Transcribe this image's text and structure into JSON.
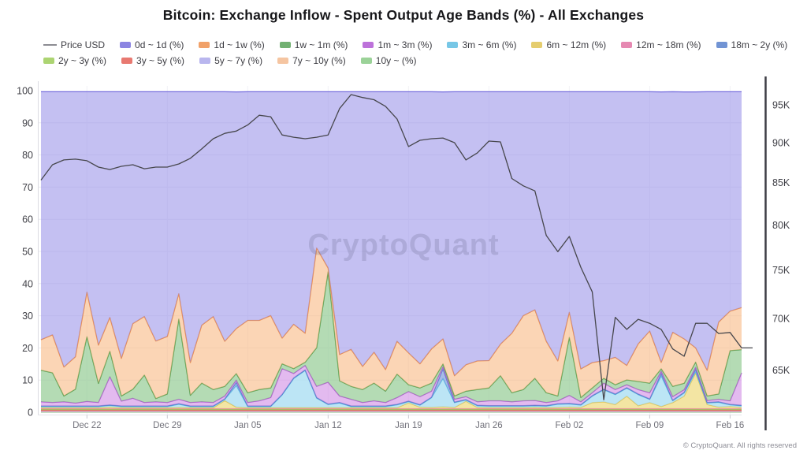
{
  "title": "Bitcoin: Exchange Inflow - Spent Output Age Bands (%) - All Exchanges",
  "watermark": "CryptoQuant",
  "footer": "© CryptoQuant. All rights reserved",
  "legend": {
    "rows": [
      [
        {
          "label": "Price USD",
          "color": "#8c8c92",
          "type": "line"
        },
        {
          "label": "0d ~ 1d (%)",
          "color": "#6f66db",
          "type": "box"
        },
        {
          "label": "1d ~ 1w (%)",
          "color": "#ed8a43",
          "type": "box"
        },
        {
          "label": "1w ~ 1m (%)",
          "color": "#4f9e4f",
          "type": "box"
        },
        {
          "label": "1m ~ 3m (%)",
          "color": "#ad4fd1",
          "type": "box"
        },
        {
          "label": "3m ~ 6m (%)",
          "color": "#55b9e0",
          "type": "box"
        },
        {
          "label": "6m ~ 12m (%)",
          "color": "#dfc04a",
          "type": "box"
        },
        {
          "label": "12m ~ 18m (%)",
          "color": "#e06c9f",
          "type": "box"
        },
        {
          "label": "18m ~ 2y (%)",
          "color": "#4f79c9",
          "type": "box"
        }
      ],
      [
        {
          "label": "2y ~ 3y (%)",
          "color": "#97c94f",
          "type": "box"
        },
        {
          "label": "3y ~ 5y (%)",
          "color": "#e2574e",
          "type": "box"
        },
        {
          "label": "5y ~ 7y (%)",
          "color": "#a8a4ea",
          "type": "box"
        },
        {
          "label": "7y ~ 10y (%)",
          "color": "#f2b78a",
          "type": "box"
        },
        {
          "label": "10y ~ (%)",
          "color": "#82c77e",
          "type": "box"
        }
      ]
    ]
  },
  "axes": {
    "left_ticks": [
      "0",
      "10",
      "20",
      "30",
      "40",
      "50",
      "60",
      "70",
      "80",
      "90",
      "100"
    ],
    "right_ticks": [
      {
        "label": "95K",
        "usd": 95000
      },
      {
        "label": "90K",
        "usd": 90000
      },
      {
        "label": "85K",
        "usd": 85000
      },
      {
        "label": "80K",
        "usd": 80000
      },
      {
        "label": "75K",
        "usd": 75000
      },
      {
        "label": "70K",
        "usd": 70000
      },
      {
        "label": "65K",
        "usd": 65000
      }
    ],
    "x_tick_labels": [
      "Dec 22",
      "Dec 29",
      "Jan 05",
      "Jan 12",
      "Jan 19",
      "Jan 26",
      "Feb 02",
      "Feb 09",
      "Feb 16"
    ],
    "x_tick_indices": [
      4,
      11,
      18,
      25,
      32,
      39,
      46,
      53,
      60
    ]
  },
  "chart_data": {
    "type": "area-stacked+line",
    "title": "Bitcoin: Exchange Inflow - Spent Output Age Bands (%) - All Exchanges",
    "left_axis": {
      "label": "Spent Output Age Bands (%)",
      "range": [
        0,
        100
      ],
      "grid": true
    },
    "right_axis": {
      "label": "Price USD",
      "scale": "log",
      "tick_labels": [
        "65K",
        "70K",
        "75K",
        "80K",
        "85K",
        "90K",
        "95K"
      ]
    },
    "legend_position": "top",
    "stack_total": 99.6,
    "x": [
      "Dec 18",
      "Dec 19",
      "Dec 20",
      "Dec 21",
      "Dec 22",
      "Dec 23",
      "Dec 24",
      "Dec 25",
      "Dec 26",
      "Dec 27",
      "Dec 28",
      "Dec 29",
      "Dec 30",
      "Dec 31",
      "Jan 01",
      "Jan 02",
      "Jan 03",
      "Jan 04",
      "Jan 05",
      "Jan 06",
      "Jan 07",
      "Jan 08",
      "Jan 09",
      "Jan 10",
      "Jan 11",
      "Jan 12",
      "Jan 13",
      "Jan 14",
      "Jan 15",
      "Jan 16",
      "Jan 17",
      "Jan 18",
      "Jan 19",
      "Jan 20",
      "Jan 21",
      "Jan 22",
      "Jan 23",
      "Jan 24",
      "Jan 25",
      "Jan 26",
      "Jan 27",
      "Jan 28",
      "Jan 29",
      "Jan 30",
      "Jan 31",
      "Feb 01",
      "Feb 02",
      "Feb 03",
      "Feb 04",
      "Feb 05",
      "Feb 06",
      "Feb 07",
      "Feb 08",
      "Feb 09",
      "Feb 10",
      "Feb 11",
      "Feb 12",
      "Feb 13",
      "Feb 14",
      "Feb 15",
      "Feb 16",
      "Feb 17"
    ],
    "price_usd": {
      "name": "Price USD",
      "color": "#47474d",
      "values": [
        85300,
        87200,
        87800,
        87900,
        87700,
        86900,
        86600,
        87000,
        87200,
        86700,
        86900,
        86900,
        87300,
        88000,
        89200,
        90500,
        91200,
        91500,
        92300,
        93600,
        93400,
        91000,
        90700,
        90500,
        90700,
        91000,
        94500,
        96400,
        96000,
        95700,
        94800,
        93100,
        89500,
        90300,
        90500,
        90600,
        90000,
        87800,
        88700,
        90200,
        90100,
        85500,
        84600,
        84000,
        78800,
        77000,
        78700,
        75300,
        72700,
        62300,
        70100,
        68900,
        69900,
        69500,
        68900,
        67000,
        66300,
        69500,
        69500,
        68500,
        68600,
        67100
      ]
    },
    "series": [
      {
        "name": "10y ~ (%)",
        "color": "#82c77e",
        "fill": "rgba(158,214,152,0.55)",
        "constant": 0.05
      },
      {
        "name": "7y ~ 10y (%)",
        "color": "#f2b78a",
        "fill": "rgba(247,205,170,0.6)",
        "constant": 0.1
      },
      {
        "name": "5y ~ 7y (%)",
        "color": "#a8a4ea",
        "fill": "rgba(192,188,242,0.6)",
        "constant": 0.1
      },
      {
        "name": "3y ~ 5y (%)",
        "color": "#e2574e",
        "fill": "rgba(238,130,122,0.6)",
        "constant": 0.4
      },
      {
        "name": "2y ~ 3y (%)",
        "color": "#97c94f",
        "fill": "rgba(178,216,120,0.6)",
        "constant": 0.25
      },
      {
        "name": "12m ~ 18m (%)",
        "color": "#e06c9f",
        "fill": "rgba(240,155,190,0.55)",
        "constant": 0.2
      },
      {
        "name": "6m ~ 12m (%)",
        "color": "#dfc04a",
        "fill": "rgba(240,222,140,0.8)",
        "values": [
          0.3,
          0.3,
          0.3,
          0.3,
          0.3,
          0.3,
          0.5,
          0.3,
          0.3,
          0.3,
          0.3,
          0.3,
          0.4,
          0.3,
          0.3,
          0.3,
          2.5,
          0.5,
          0.3,
          0.3,
          0.3,
          0.3,
          0.3,
          0.3,
          0.3,
          0.3,
          0.3,
          0.3,
          0.3,
          0.3,
          0.3,
          0.3,
          1.8,
          0.5,
          0.4,
          0.6,
          0.4,
          2.3,
          0.4,
          0.3,
          0.3,
          0.3,
          0.3,
          0.4,
          0.3,
          0.4,
          0.5,
          0.4,
          1.9,
          2.1,
          1.3,
          3.9,
          0.9,
          1.9,
          0.7,
          1.9,
          3.9,
          11.1,
          1.3,
          0.5,
          0.7,
          0.4
        ]
      },
      {
        "name": "3m ~ 6m (%)",
        "color": "#55b9e0",
        "fill": "rgba(165,220,242,0.75)",
        "values": [
          0.4,
          0.4,
          0.4,
          0.4,
          0.4,
          0.4,
          0.5,
          0.4,
          0.4,
          0.4,
          0.4,
          0.4,
          1.0,
          0.4,
          0.4,
          0.4,
          0.4,
          6.7,
          0.4,
          0.4,
          0.4,
          4.0,
          9.1,
          11.6,
          3.0,
          1.0,
          1.5,
          0.4,
          0.4,
          0.4,
          0.4,
          0.9,
          0.4,
          0.6,
          3.0,
          8.8,
          1.5,
          0.4,
          0.5,
          0.5,
          0.5,
          0.5,
          0.5,
          0.5,
          0.5,
          1.0,
          1.0,
          0.7,
          2.0,
          3.8,
          3.1,
          2.5,
          3.5,
          1.0,
          9.5,
          0.6,
          1.0,
          0.4,
          0.5,
          1.5,
          0.5,
          0.5
        ]
      },
      {
        "name": "18m ~ 2y (%)",
        "color": "#4f79c9",
        "fill": "rgba(130,158,222,0.7)",
        "values": [
          0.15,
          0.15,
          0.15,
          0.15,
          0.15,
          0.15,
          0.15,
          0.15,
          0.15,
          0.15,
          0.15,
          0.15,
          0.15,
          0.15,
          0.15,
          0.15,
          0.15,
          1.0,
          0.15,
          0.15,
          0.15,
          0.15,
          0.15,
          0.15,
          0.15,
          0.15,
          0.15,
          0.15,
          0.15,
          0.15,
          0.15,
          0.15,
          0.15,
          0.15,
          0.15,
          3.0,
          0.15,
          0.15,
          0.15,
          0.15,
          0.15,
          0.15,
          0.15,
          0.15,
          0.15,
          0.15,
          0.15,
          0.15,
          0.15,
          0.15,
          0.15,
          0.15,
          0.15,
          0.15,
          0.8,
          0.15,
          0.2,
          0.8,
          0.15,
          0.15,
          0.15,
          0.15
        ]
      },
      {
        "name": "1m ~ 3m (%)",
        "color": "#ad4fd1",
        "fill": "rgba(208,140,228,0.6)",
        "values": [
          1.3,
          1.1,
          1.3,
          0.9,
          1.4,
          1.1,
          8.8,
          1.5,
          2.4,
          1.1,
          1.3,
          1.1,
          1.4,
          1.1,
          1.3,
          1.1,
          0.9,
          0.7,
          1.1,
          1.6,
          2.6,
          8.0,
          1.4,
          1.4,
          3.5,
          6.8,
          2.0,
          2.1,
          1.1,
          1.6,
          1.1,
          2.1,
          3.0,
          2.5,
          1.9,
          0.7,
          0.9,
          0.9,
          1.1,
          1.5,
          1.5,
          1.2,
          1.5,
          1.5,
          1.0,
          0.9,
          2.5,
          0.9,
          0.9,
          1.9,
          1.4,
          0.9,
          1.4,
          1.9,
          0.7,
          1.1,
          0.8,
          0.6,
          0.6,
          0.8,
          1.1,
          10.1
        ]
      },
      {
        "name": "1w ~ 1m (%)",
        "color": "#4f9e4f",
        "fill": "rgba(140,200,140,0.65)",
        "values": [
          9.8,
          9.2,
          1.8,
          4.3,
          20.1,
          5.9,
          7.9,
          1.6,
          2.8,
          8.5,
          1.0,
          2.6,
          24.9,
          2.2,
          5.8,
          4.0,
          3.0,
          2.0,
          3.0,
          3.5,
          3.0,
          1.5,
          1.5,
          1.0,
          12.0,
          34.3,
          4.7,
          4.0,
          4.0,
          5.5,
          3.5,
          7.3,
          2.1,
          2.7,
          2.5,
          0.8,
          1.0,
          1.7,
          3.8,
          4.0,
          7.8,
          2.8,
          3.5,
          6.9,
          3.0,
          1.5,
          18.0,
          1.3,
          1.5,
          1.5,
          1.5,
          1.5,
          2.5,
          3.0,
          0.7,
          3.2,
          2.0,
          1.6,
          1.4,
          1.6,
          15.6,
          7.2
        ]
      },
      {
        "name": "1d ~ 1w (%)",
        "color": "#ed8a43",
        "fill": "rgba(247,178,120,0.55)",
        "values": [
          9.5,
          11.8,
          9.0,
          10.1,
          13.9,
          11.9,
          10.5,
          11.7,
          20.4,
          18.2,
          17.9,
          17.9,
          7.9,
          10.2,
          18.0,
          22.7,
          14.0,
          14.0,
          22.5,
          21.5,
          22.5,
          8.0,
          13.8,
          9.0,
          31.0,
          1.2,
          8.2,
          11.5,
          7.2,
          9.6,
          6.7,
          10.2,
          9.9,
          7.5,
          10.6,
          7.8,
          6.3,
          8.2,
          8.9,
          8.5,
          9.8,
          18.5,
          23.0,
          21.3,
          16.0,
          10.9,
          7.8,
          8.9,
          7.9,
          5.5,
          8.5,
          4.5,
          11.7,
          16.2,
          2.0,
          16.8,
          13.8,
          4.4,
          8.0,
          22.4,
          12.3,
          13.1
        ]
      },
      {
        "name": "0d ~ 1d (%)",
        "color": "#6f66db",
        "fill": "rgba(148,140,232,0.55)",
        "values": [
          77.1,
          75.6,
          85.6,
          82.4,
          62.3,
          78.8,
          70.2,
          82.9,
          72.1,
          69.9,
          77.5,
          76.1,
          62.8,
          84.2,
          72.6,
          69.9,
          77.6,
          73.6,
          71.1,
          71.1,
          69.6,
          76.6,
          72.3,
          75.1,
          48.6,
          54.8,
          81.7,
          80.1,
          85.4,
          81.0,
          86.4,
          77.6,
          81.2,
          84.6,
          80.0,
          76.8,
          88.3,
          84.9,
          83.7,
          83.6,
          78.5,
          75.1,
          69.6,
          67.8,
          77.6,
          83.7,
          68.6,
          86.2,
          84.2,
          83.6,
          82.6,
          85.1,
          78.4,
          74.4,
          84.1,
          74.8,
          76.8,
          79.6,
          86.6,
          71.6,
          68.2,
          67.1
        ]
      }
    ]
  }
}
